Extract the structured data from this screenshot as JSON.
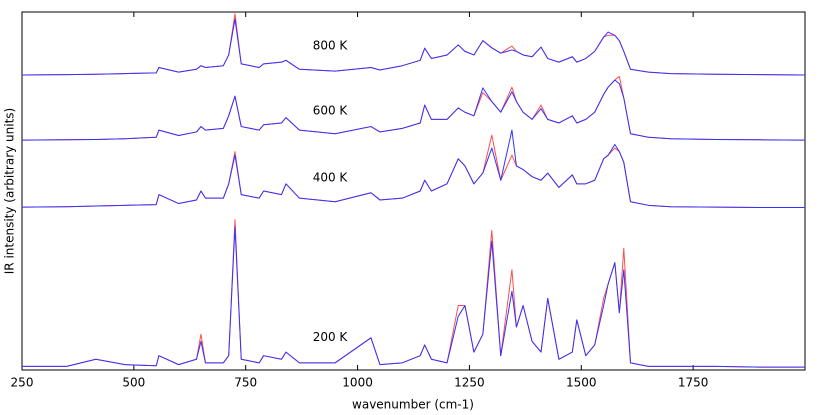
{
  "chart_data": {
    "type": "line",
    "xlabel": "wavenumber (cm-1)",
    "ylabel": "IR intensity (arbitrary units)",
    "xlim": [
      250,
      2000
    ],
    "xticks": [
      250,
      500,
      750,
      1000,
      1250,
      1500,
      1750
    ],
    "ylim": [
      0,
      100
    ],
    "x": [
      250,
      350,
      415,
      480,
      550,
      556,
      600,
      640,
      650,
      660,
      700,
      712,
      726,
      740,
      780,
      790,
      830,
      840,
      870,
      950,
      1030,
      1050,
      1100,
      1140,
      1150,
      1165,
      1200,
      1225,
      1240,
      1260,
      1280,
      1300,
      1320,
      1345,
      1355,
      1370,
      1390,
      1410,
      1425,
      1450,
      1480,
      1490,
      1510,
      1530,
      1550,
      1560,
      1575,
      1585,
      1595,
      1610,
      1650,
      1700,
      1800,
      1900,
      2000
    ],
    "groups": [
      {
        "label": "800 K",
        "series": [
          {
            "color": "#ff4d4d",
            "values": [
              82.4,
              82.5,
              82.6,
              82.8,
              83,
              84.5,
              83.2,
              84,
              85,
              84.5,
              85,
              88,
              99.5,
              85.5,
              84.5,
              85.5,
              86,
              86.5,
              84,
              83.5,
              84.5,
              83.8,
              85,
              86.5,
              89.9,
              87,
              88,
              90.8,
              89,
              88,
              92,
              90,
              88.5,
              90.5,
              89,
              88,
              87.5,
              90.2,
              87,
              86,
              87.5,
              86,
              87,
              89,
              93,
              93.5,
              93.5,
              92,
              89,
              84,
              83.2,
              82.8,
              82.6,
              82.5,
              82.4
            ]
          },
          {
            "color": "#3333ff",
            "values": [
              82.4,
              82.5,
              82.6,
              82.8,
              83,
              84.5,
              83.2,
              84,
              85,
              84.5,
              85,
              88,
              98,
              85.5,
              84.5,
              85.5,
              86,
              86.5,
              84,
              83.5,
              84.5,
              83.8,
              85,
              86.5,
              89.9,
              87,
              88,
              90.8,
              89,
              88,
              92,
              90,
              88.5,
              89.4,
              89,
              88,
              87.5,
              90.2,
              87,
              86,
              87.5,
              86,
              87,
              89,
              93,
              94.4,
              93.5,
              92,
              89,
              84,
              83.2,
              82.8,
              82.6,
              82.5,
              82.4
            ]
          }
        ]
      },
      {
        "label": "600 K",
        "series": [
          {
            "color": "#ff4d4d",
            "values": [
              64.2,
              64.3,
              64.4,
              64.6,
              65,
              67,
              65.5,
              66.5,
              68,
              67,
              67.5,
              71,
              76.5,
              68,
              67,
              68.5,
              69,
              70.5,
              67,
              66,
              68,
              66.5,
              67.5,
              69,
              74,
              70,
              70,
              73.2,
              72,
              71,
              77.5,
              75,
              72,
              79,
              75,
              72,
              70,
              74,
              70,
              69,
              71,
              69,
              70,
              72,
              77,
              79,
              81,
              82,
              76,
              66,
              65,
              64.6,
              64.4,
              64.3,
              64.2
            ]
          },
          {
            "color": "#3333ff",
            "values": [
              64.2,
              64.3,
              64.4,
              64.6,
              65,
              67,
              65.5,
              66.5,
              68,
              67,
              67.5,
              71,
              76.5,
              68,
              67,
              68.5,
              69,
              70.5,
              67,
              66,
              68,
              66.5,
              67.5,
              69,
              74,
              70,
              70,
              73.2,
              72,
              71,
              78.8,
              75,
              72,
              77.7,
              75,
              72,
              70,
              73,
              70,
              69,
              71,
              69,
              70,
              72,
              77,
              79,
              81,
              80,
              76,
              66,
              65,
              64.6,
              64.4,
              64.3,
              64.2
            ]
          }
        ]
      },
      {
        "label": "400 K",
        "series": [
          {
            "color": "#ff4d4d",
            "values": [
              45.5,
              45.6,
              45.8,
              46,
              46.2,
              49,
              46.5,
              47.5,
              50,
              48,
              48,
              52,
              61,
              49,
              48,
              50,
              49,
              52,
              48,
              47,
              49.5,
              47.5,
              48,
              50,
              53,
              50,
              52,
              59,
              57,
              52,
              55,
              65.6,
              53,
              60,
              57,
              56,
              54,
              53,
              55,
              51,
              54.5,
              52,
              52,
              53,
              59,
              60,
              62,
              61,
              58,
              47,
              46,
              45.6,
              45.5,
              45.4,
              45.4
            ]
          },
          {
            "color": "#3333ff",
            "values": [
              45.5,
              45.6,
              45.8,
              46,
              46.2,
              49,
              46.5,
              47.5,
              50,
              48,
              48,
              52,
              60,
              49,
              48,
              50,
              49,
              52,
              48,
              47,
              49.5,
              47.5,
              48,
              50,
              53,
              50,
              52,
              59,
              57,
              52,
              55,
              62,
              53,
              67,
              57,
              56,
              54,
              53,
              55,
              51,
              54.5,
              52,
              52,
              53,
              59,
              60,
              63,
              61,
              58,
              47,
              46,
              45.6,
              45.5,
              45.4,
              45.4
            ]
          }
        ]
      },
      {
        "label": "200 K",
        "series": [
          {
            "color": "#ff4d4d",
            "values": [
              1,
              1,
              3,
              1.5,
              1.2,
              4,
              1.5,
              3,
              10,
              2,
              2,
              4,
              42,
              3,
              2,
              4,
              3,
              5,
              2,
              2,
              9,
              1.5,
              2,
              4,
              7,
              3,
              2,
              18,
              18,
              5,
              10,
              39,
              4,
              28,
              12,
              18,
              8,
              5,
              20,
              3,
              5,
              14,
              4,
              7,
              20,
              24,
              30,
              16,
              34,
              2,
              1,
              1,
              1,
              0.8,
              0.8
            ]
          },
          {
            "color": "#3333ff",
            "values": [
              1,
              1,
              3,
              1.5,
              1.2,
              4,
              1.5,
              3,
              8,
              2,
              2,
              4,
              40,
              3,
              2,
              4,
              3,
              5,
              2,
              2,
              9,
              1.5,
              2,
              4,
              7,
              3,
              2,
              15,
              18,
              5,
              10,
              36,
              4,
              22,
              12,
              18,
              8,
              5,
              20,
              3,
              5,
              14,
              4,
              7,
              18,
              24,
              30,
              16,
              28,
              2,
              1,
              1,
              1,
              0.8,
              0.8
            ]
          }
        ]
      }
    ]
  }
}
